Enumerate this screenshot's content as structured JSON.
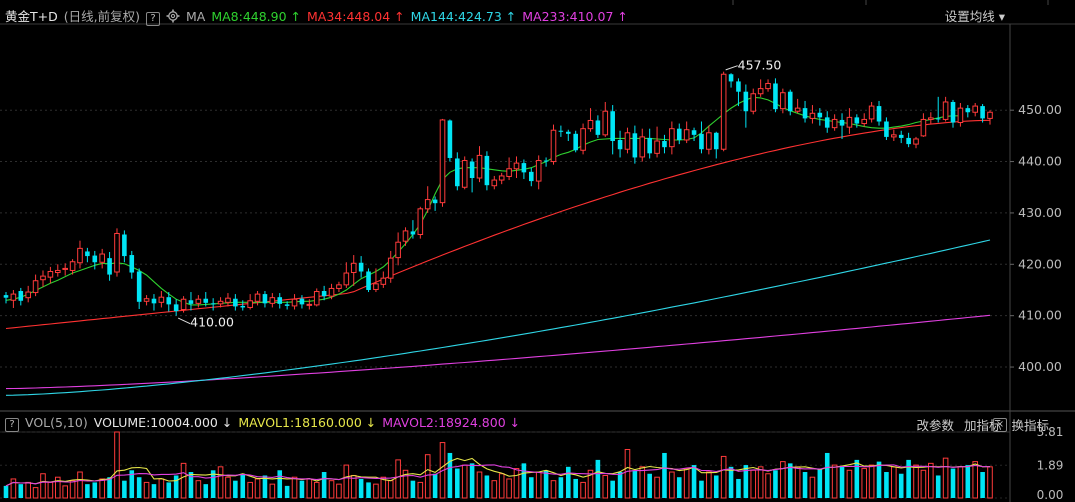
{
  "header": {
    "title": "黄金T+D",
    "subtitle": "(日线,前复权)",
    "help_label": "?",
    "ma_label": "MA",
    "ma_items": [
      {
        "text": "MA8:448.90 ↑",
        "color": "#2fd12f"
      },
      {
        "text": "MA34:448.04 ↑",
        "color": "#ff3232"
      },
      {
        "text": "MA144:424.73 ↑",
        "color": "#2fd6e6"
      },
      {
        "text": "MA233:410.07 ↑",
        "color": "#e040e0"
      }
    ],
    "settings_label": "设置均线",
    "settings_arrow": "▾"
  },
  "volume_panel": {
    "help_label": "?",
    "label": "VOL(5,10)",
    "volume_text": "VOLUME:10004.000 ↓",
    "mavol1_text": "MAVOL1:18160.000 ↓",
    "mavol2_text": "MAVOL2:18924.800 ↓",
    "menu": [
      "改参数",
      "加指标",
      "换指标"
    ],
    "close_label": "×",
    "axis_labels": [
      "3.81",
      "1.89",
      "0.00"
    ]
  },
  "colors": {
    "up": "#ff3b3b",
    "down": "#00e5f5",
    "ma8": "#2fd12f",
    "ma34": "#ff3232",
    "ma144": "#2fd6e6",
    "ma233": "#e040e0",
    "mavol1": "#e6e64a",
    "mavol2": "#e040e0"
  },
  "chart_data": {
    "type": "candlestick",
    "title": "黄金T+D",
    "y_ticks": [
      400.0,
      410.0,
      420.0,
      430.0,
      440.0,
      450.0
    ],
    "y_tick_labels": [
      "400.00",
      "410.00",
      "420.00",
      "430.00",
      "440.00",
      "450.00"
    ],
    "ylim": [
      393.0,
      466.0
    ],
    "annotations": [
      {
        "text": "457.50",
        "value": 457.5,
        "kind": "high"
      },
      {
        "text": "410.00",
        "value": 410.0,
        "kind": "low"
      }
    ],
    "candles": [
      [
        414.0,
        413.5,
        414.6,
        412.4
      ],
      [
        413.0,
        414.2,
        415.0,
        411.5
      ],
      [
        414.8,
        412.9,
        415.4,
        412.0
      ],
      [
        413.5,
        414.6,
        415.8,
        412.6
      ],
      [
        414.5,
        416.8,
        418.0,
        413.8
      ],
      [
        417.0,
        417.7,
        418.8,
        415.6
      ],
      [
        417.5,
        418.6,
        419.5,
        416.3
      ],
      [
        418.4,
        418.8,
        420.0,
        417.6
      ],
      [
        419.0,
        419.2,
        420.2,
        417.8
      ],
      [
        418.8,
        420.5,
        421.0,
        418.0
      ],
      [
        420.3,
        423.1,
        424.6,
        419.2
      ],
      [
        422.5,
        421.6,
        423.2,
        420.4
      ],
      [
        421.7,
        420.4,
        422.6,
        419.0
      ],
      [
        420.4,
        422.0,
        423.0,
        419.2
      ],
      [
        421.2,
        418.0,
        422.4,
        416.8
      ],
      [
        418.5,
        426.0,
        427.0,
        417.6
      ],
      [
        425.8,
        421.6,
        426.6,
        420.4
      ],
      [
        421.8,
        418.4,
        422.6,
        417.2
      ],
      [
        418.6,
        412.7,
        419.2,
        411.3
      ],
      [
        412.8,
        413.3,
        414.0,
        412.0
      ],
      [
        413.3,
        412.4,
        414.2,
        411.0
      ],
      [
        412.6,
        413.6,
        414.8,
        411.6
      ],
      [
        413.6,
        412.2,
        414.6,
        410.8
      ],
      [
        412.2,
        410.9,
        413.2,
        410.0
      ],
      [
        411.2,
        413.2,
        413.8,
        410.6
      ],
      [
        413.0,
        412.3,
        414.6,
        411.0
      ],
      [
        412.4,
        413.2,
        414.0,
        411.6
      ],
      [
        413.3,
        412.5,
        414.6,
        411.8
      ],
      [
        412.4,
        412.2,
        413.4,
        411.0
      ],
      [
        412.3,
        412.8,
        413.6,
        411.6
      ],
      [
        412.6,
        413.4,
        414.4,
        411.8
      ],
      [
        413.3,
        411.8,
        414.2,
        411.0
      ],
      [
        411.9,
        411.6,
        413.0,
        411.0
      ],
      [
        411.6,
        412.9,
        414.2,
        411.2
      ],
      [
        412.8,
        414.2,
        414.8,
        412.0
      ],
      [
        414.2,
        412.4,
        414.8,
        411.6
      ],
      [
        412.4,
        413.5,
        414.4,
        411.6
      ],
      [
        413.6,
        412.3,
        414.4,
        411.4
      ],
      [
        412.2,
        411.9,
        412.8,
        411.2
      ],
      [
        411.9,
        413.2,
        414.2,
        411.2
      ],
      [
        413.3,
        412.2,
        414.0,
        411.4
      ],
      [
        412.2,
        412.2,
        413.2,
        411.2
      ],
      [
        412.1,
        414.7,
        415.3,
        411.8
      ],
      [
        414.8,
        413.8,
        415.8,
        413.0
      ],
      [
        413.8,
        415.3,
        416.2,
        413.2
      ],
      [
        415.3,
        416.0,
        416.6,
        414.6
      ],
      [
        416.0,
        418.3,
        420.4,
        415.4
      ],
      [
        418.4,
        420.2,
        421.8,
        415.8
      ],
      [
        420.3,
        418.6,
        421.6,
        417.4
      ],
      [
        418.6,
        415.0,
        419.2,
        414.6
      ],
      [
        415.1,
        416.2,
        419.2,
        414.6
      ],
      [
        416.1,
        417.3,
        418.6,
        415.4
      ],
      [
        417.3,
        421.2,
        422.6,
        416.4
      ],
      [
        421.3,
        424.3,
        426.2,
        419.8
      ],
      [
        424.5,
        426.5,
        427.2,
        423.6
      ],
      [
        426.4,
        425.8,
        428.6,
        425.0
      ],
      [
        425.8,
        430.8,
        431.2,
        425.0
      ],
      [
        430.8,
        432.6,
        435.2,
        430.0
      ],
      [
        432.6,
        431.9,
        433.2,
        430.4
      ],
      [
        432.0,
        448.1,
        448.3,
        431.2
      ],
      [
        448.0,
        440.7,
        448.2,
        440.0
      ],
      [
        440.6,
        435.2,
        441.8,
        434.4
      ],
      [
        435.0,
        440.2,
        441.0,
        434.6
      ],
      [
        440.0,
        436.8,
        440.6,
        434.0
      ],
      [
        436.8,
        441.2,
        443.0,
        436.0
      ],
      [
        441.1,
        435.4,
        442.0,
        434.4
      ],
      [
        435.3,
        436.4,
        437.2,
        434.6
      ],
      [
        436.4,
        437.2,
        437.8,
        435.6
      ],
      [
        437.1,
        438.6,
        440.8,
        436.4
      ],
      [
        438.6,
        439.7,
        441.0,
        436.8
      ],
      [
        439.7,
        437.9,
        440.4,
        436.6
      ],
      [
        438.0,
        436.2,
        438.8,
        435.2
      ],
      [
        436.2,
        440.2,
        441.2,
        434.6
      ],
      [
        440.2,
        440.0,
        440.8,
        439.0
      ],
      [
        440.0,
        446.1,
        447.2,
        439.4
      ],
      [
        446.0,
        445.8,
        447.0,
        444.8
      ],
      [
        445.8,
        445.4,
        446.2,
        444.0
      ],
      [
        445.4,
        442.2,
        446.0,
        441.8
      ],
      [
        442.2,
        446.4,
        447.4,
        441.4
      ],
      [
        446.4,
        448.0,
        450.4,
        445.8
      ],
      [
        448.0,
        445.2,
        449.0,
        444.6
      ],
      [
        445.2,
        449.8,
        451.6,
        444.8
      ],
      [
        449.8,
        444.0,
        451.0,
        441.4
      ],
      [
        444.2,
        442.4,
        446.0,
        440.8
      ],
      [
        442.4,
        445.6,
        446.6,
        441.6
      ],
      [
        445.5,
        440.8,
        447.0,
        439.6
      ],
      [
        440.9,
        444.8,
        446.4,
        440.0
      ],
      [
        444.6,
        441.6,
        446.4,
        440.6
      ],
      [
        441.6,
        444.0,
        446.8,
        440.8
      ],
      [
        444.0,
        442.8,
        445.2,
        441.6
      ],
      [
        442.9,
        446.4,
        447.8,
        441.4
      ],
      [
        446.4,
        444.2,
        447.4,
        443.4
      ],
      [
        444.2,
        446.2,
        447.8,
        443.6
      ],
      [
        446.1,
        445.2,
        446.6,
        444.0
      ],
      [
        445.4,
        442.4,
        447.8,
        441.6
      ],
      [
        442.4,
        445.6,
        447.0,
        441.4
      ],
      [
        445.6,
        442.4,
        445.8,
        440.6
      ],
      [
        442.4,
        457.0,
        457.5,
        442.0
      ],
      [
        457.0,
        455.6,
        457.2,
        454.4
      ],
      [
        455.6,
        453.6,
        456.2,
        450.8
      ],
      [
        453.6,
        449.8,
        455.0,
        446.6
      ],
      [
        449.8,
        453.2,
        454.2,
        449.2
      ],
      [
        453.2,
        454.2,
        456.0,
        452.6
      ],
      [
        454.2,
        455.2,
        456.0,
        453.6
      ],
      [
        455.2,
        450.2,
        456.2,
        449.6
      ],
      [
        450.3,
        453.4,
        454.2,
        449.4
      ],
      [
        453.6,
        449.8,
        454.0,
        449.0
      ],
      [
        449.8,
        450.4,
        452.2,
        449.4
      ],
      [
        450.4,
        448.4,
        451.8,
        447.6
      ],
      [
        448.4,
        449.4,
        451.0,
        447.4
      ],
      [
        449.5,
        448.6,
        450.4,
        447.0
      ],
      [
        448.6,
        446.6,
        449.8,
        445.6
      ],
      [
        446.6,
        448.2,
        449.2,
        446.0
      ],
      [
        448.1,
        447.0,
        449.4,
        444.4
      ],
      [
        446.7,
        448.6,
        450.4,
        445.4
      ],
      [
        448.6,
        447.4,
        449.2,
        446.6
      ],
      [
        447.4,
        448.2,
        449.4,
        446.8
      ],
      [
        448.3,
        450.8,
        451.6,
        447.6
      ],
      [
        450.8,
        447.8,
        451.8,
        447.0
      ],
      [
        447.8,
        444.8,
        448.6,
        444.2
      ],
      [
        444.8,
        445.2,
        446.2,
        444.0
      ],
      [
        445.2,
        444.6,
        446.0,
        443.6
      ],
      [
        444.6,
        443.4,
        445.6,
        442.8
      ],
      [
        443.4,
        444.4,
        444.8,
        442.6
      ],
      [
        445.0,
        448.2,
        449.4,
        444.8
      ],
      [
        448.2,
        448.5,
        449.6,
        447.4
      ],
      [
        448.4,
        448.2,
        452.6,
        447.6
      ],
      [
        448.2,
        451.6,
        452.6,
        447.8
      ],
      [
        451.6,
        447.6,
        452.0,
        446.6
      ],
      [
        447.6,
        450.4,
        451.4,
        446.8
      ],
      [
        450.4,
        449.6,
        451.0,
        448.6
      ],
      [
        449.6,
        450.8,
        451.4,
        448.8
      ],
      [
        450.8,
        448.4,
        451.2,
        447.6
      ],
      [
        448.4,
        449.6,
        450.0,
        447.2
      ]
    ],
    "ma8_series": [
      413.0,
      413.2,
      413.6,
      414.2,
      414.9,
      415.6,
      416.3,
      416.9,
      417.6,
      418.3,
      418.8,
      419.3,
      419.8,
      420.2,
      420.1,
      420.3,
      420.1,
      419.5,
      418.8,
      417.9,
      416.6,
      415.3,
      414.2,
      413.2,
      412.6,
      412.1,
      412.1,
      412.2,
      412.3,
      412.4,
      412.5,
      412.6,
      412.6,
      412.6,
      412.6,
      412.6,
      412.6,
      412.6,
      412.6,
      412.7,
      412.8,
      412.8,
      413.0,
      413.2,
      413.6,
      414.2,
      415.0,
      416.1,
      417.2,
      417.9,
      418.6,
      419.5,
      420.8,
      422.4,
      424.0,
      425.8,
      427.8,
      430.5,
      433.7,
      436.5,
      437.9,
      438.6,
      438.8,
      438.8,
      438.8,
      438.6,
      438.4,
      438.2,
      438.1,
      438.3,
      438.5,
      438.8,
      439.4,
      440.0,
      440.8,
      441.4,
      441.8,
      442.4,
      443.2,
      443.8,
      444.3,
      444.4,
      444.5,
      444.5,
      444.5,
      444.5,
      444.5,
      444.5,
      444.4,
      444.3,
      444.2,
      444.2,
      444.3,
      444.6,
      445.6,
      446.9,
      448.1,
      449.3,
      450.4,
      451.3,
      452.0,
      452.5,
      452.4,
      452.0,
      451.3,
      450.5,
      449.9,
      449.4,
      448.9,
      448.5,
      448.2,
      448.0,
      447.8,
      447.6,
      447.4,
      447.1,
      446.8,
      446.6,
      446.5,
      446.5,
      446.7,
      446.9,
      447.2,
      447.6,
      447.9,
      448.2,
      448.5,
      448.8,
      448.9,
      448.9
    ],
    "ma34_start": 407.5,
    "ma34_end": 448.04,
    "ma144_start": 394.5,
    "ma144_end": 424.73,
    "ma233_start": 395.8,
    "ma233_end": 410.07,
    "volume_axis": {
      "ylim": [
        0.0,
        3.81
      ],
      "ticks": [
        0.0,
        1.89,
        3.81
      ]
    },
    "volumes": [
      0.7,
      1.1,
      0.8,
      0.9,
      0.6,
      1.4,
      0.9,
      1.2,
      0.7,
      1.0,
      1.5,
      0.8,
      0.9,
      1.1,
      1.2,
      3.81,
      1.0,
      1.6,
      1.2,
      0.9,
      0.8,
      1.1,
      0.9,
      1.3,
      2.0,
      1.5,
      1.0,
      0.8,
      1.6,
      1.8,
      1.2,
      1.0,
      1.4,
      0.9,
      1.1,
      1.3,
      0.8,
      1.6,
      0.7,
      1.2,
      1.0,
      1.1,
      0.9,
      1.5,
      1.0,
      0.8,
      1.9,
      1.3,
      1.1,
      0.9,
      0.8,
      1.2,
      1.0,
      2.2,
      1.6,
      1.0,
      0.9,
      2.5,
      1.4,
      3.2,
      2.6,
      1.7,
      1.9,
      2.0,
      1.5,
      1.3,
      1.0,
      1.4,
      1.1,
      1.7,
      2.0,
      1.2,
      1.5,
      1.6,
      1.0,
      1.2,
      1.8,
      1.1,
      0.9,
      1.6,
      2.2,
      1.3,
      1.0,
      1.5,
      2.8,
      1.6,
      1.8,
      1.4,
      1.2,
      2.6,
      1.5,
      1.2,
      1.7,
      1.9,
      1.0,
      1.5,
      1.3,
      2.4,
      1.8,
      1.1,
      1.9,
      1.6,
      1.8,
      1.4,
      1.6,
      2.1,
      2.0,
      1.8,
      1.5,
      1.2,
      1.7,
      2.6,
      1.9,
      1.8,
      1.6,
      2.2,
      1.7,
      1.9,
      2.1,
      1.5,
      1.8,
      1.4,
      2.2,
      1.9,
      1.6,
      2.0,
      1.3,
      2.3,
      1.7,
      1.8,
      1.9,
      2.1,
      1.5,
      1.8
    ]
  }
}
